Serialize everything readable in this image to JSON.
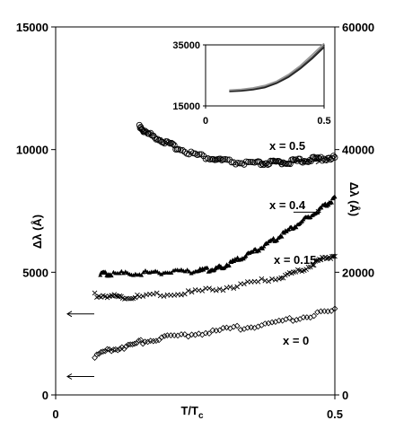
{
  "chart_data": [
    {
      "type": "scatter",
      "title": "",
      "xlabel": "T/T",
      "xlabel_sub": "c",
      "ylabel_left": "Δλ (Å)",
      "ylabel_right": "Δλ (Å)",
      "xlim": [
        0,
        0.5
      ],
      "ylim_left": [
        0,
        15000
      ],
      "ylim_right": [
        0,
        60000
      ],
      "grid": false,
      "x_ticks": [
        {
          "value": 0,
          "label": "0"
        },
        {
          "value": 0.5,
          "label": "0.5"
        }
      ],
      "y_left_ticks": [
        {
          "value": 0,
          "label": "0"
        },
        {
          "value": 5000,
          "label": "5000"
        },
        {
          "value": 10000,
          "label": "10000"
        },
        {
          "value": 15000,
          "label": "15000"
        }
      ],
      "y_right_ticks": [
        {
          "value": 0,
          "label": "0"
        },
        {
          "value": 20000,
          "label": "20000"
        },
        {
          "value": 40000,
          "label": "40000"
        },
        {
          "value": 60000,
          "label": "60000"
        }
      ],
      "series": [
        {
          "name": "x = 0.5",
          "marker": "open-circle",
          "axis": "right",
          "x": [
            0.15,
            0.16,
            0.18,
            0.2,
            0.22,
            0.25,
            0.28,
            0.3,
            0.33,
            0.36,
            0.38,
            0.4,
            0.42,
            0.44,
            0.46,
            0.48,
            0.5
          ],
          "y": [
            44000,
            42800,
            42000,
            41000,
            40200,
            39200,
            38500,
            38200,
            37800,
            37700,
            37800,
            37900,
            38000,
            38200,
            38400,
            38600,
            38700
          ]
        },
        {
          "name": "x = 0.4",
          "marker": "filled-triangle",
          "axis": "left",
          "x": [
            0.08,
            0.1,
            0.15,
            0.2,
            0.25,
            0.28,
            0.3,
            0.33,
            0.36,
            0.39,
            0.42,
            0.45,
            0.48,
            0.5
          ],
          "y": [
            4930,
            4950,
            4970,
            5000,
            5050,
            5120,
            5250,
            5550,
            5900,
            6300,
            6750,
            7200,
            7700,
            8000
          ]
        },
        {
          "name": "x = 0.15",
          "marker": "cross",
          "axis": "right",
          "x": [
            0.07,
            0.1,
            0.12,
            0.15,
            0.2,
            0.25,
            0.3,
            0.35,
            0.4,
            0.43,
            0.46,
            0.48,
            0.5
          ],
          "y": [
            16300,
            16100,
            15900,
            16000,
            16400,
            16800,
            17400,
            18200,
            19200,
            20000,
            21200,
            22200,
            22800
          ]
        },
        {
          "name": "x = 0",
          "marker": "open-diamond",
          "axis": "right",
          "x": [
            0.07,
            0.1,
            0.13,
            0.16,
            0.2,
            0.25,
            0.3,
            0.35,
            0.4,
            0.45,
            0.5
          ],
          "y": [
            6400,
            7400,
            8000,
            8800,
            9400,
            10000,
            10600,
            11200,
            11900,
            12800,
            13800
          ]
        }
      ],
      "axis_arrows": [
        {
          "direction": "left",
          "points_to": "left axis",
          "x": 0.045,
          "y_right": 13200
        },
        {
          "direction": "left",
          "points_to": "left axis",
          "x": 0.045,
          "y_right": 3000
        },
        {
          "direction": "right",
          "points_to": "right axis",
          "x": 0.45,
          "y_right": 38100
        },
        {
          "direction": "right",
          "points_to": "right axis",
          "x": 0.45,
          "y_right": 29800
        }
      ]
    },
    {
      "type": "line",
      "inset": true,
      "title": "",
      "xlim": [
        0,
        0.5
      ],
      "ylim": [
        15000,
        35000
      ],
      "x_ticks": [
        {
          "value": 0,
          "label": "0"
        },
        {
          "value": 0.5,
          "label": "0.5"
        }
      ],
      "y_ticks": [
        {
          "value": 15000,
          "label": "15000"
        },
        {
          "value": 35000,
          "label": "35000"
        }
      ],
      "series": [
        {
          "x": [
            0.1,
            0.15,
            0.2,
            0.25,
            0.3,
            0.35,
            0.4,
            0.45,
            0.5
          ],
          "y": [
            20000,
            20200,
            20600,
            21300,
            22700,
            24800,
            27600,
            31000,
            34800
          ],
          "color": "#555555"
        },
        {
          "x": [
            0.1,
            0.15,
            0.2,
            0.25,
            0.3,
            0.35,
            0.4,
            0.45,
            0.5
          ],
          "y": [
            19700,
            19900,
            20300,
            21000,
            22400,
            24400,
            27200,
            30500,
            34200
          ],
          "color": "#222222"
        },
        {
          "x": [
            0.1,
            0.15,
            0.2,
            0.25,
            0.3,
            0.35,
            0.4,
            0.45,
            0.5
          ],
          "y": [
            20200,
            20400,
            20900,
            21700,
            23100,
            25300,
            28200,
            31800,
            35500
          ],
          "color": "#999999"
        }
      ]
    }
  ]
}
